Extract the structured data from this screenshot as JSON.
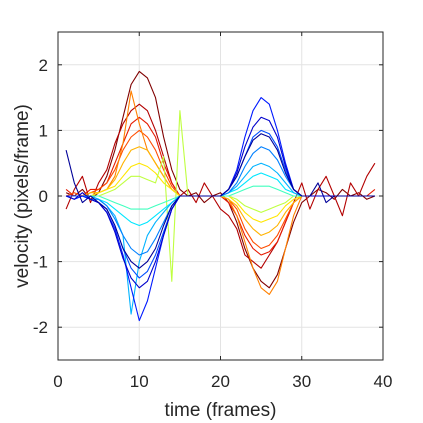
{
  "chart_data": {
    "type": "line",
    "title": "",
    "xlabel": "time (frames)",
    "ylabel": "velocity (pixels/frame)",
    "xlim": [
      0,
      40
    ],
    "ylim": [
      -2.5,
      2.5
    ],
    "xticks": [
      0,
      10,
      20,
      30,
      40
    ],
    "yticks": [
      -2,
      -1,
      0,
      1,
      2
    ],
    "xtick_labels": [
      "0",
      "10",
      "20",
      "30",
      "40"
    ],
    "ytick_labels": [
      "-2",
      "-1",
      "0",
      "1",
      "2"
    ],
    "grid": true,
    "legend": "none",
    "colormap": "jet",
    "x": [
      1,
      2,
      3,
      4,
      5,
      6,
      7,
      8,
      9,
      10,
      11,
      12,
      13,
      14,
      15,
      16,
      17,
      18,
      19,
      20,
      21,
      22,
      23,
      24,
      25,
      26,
      27,
      28,
      29,
      30,
      31,
      32,
      33,
      34,
      35,
      36,
      37,
      38,
      39
    ],
    "series": [
      {
        "color": "#800000",
        "values": [
          0.05,
          0.0,
          0.1,
          -0.05,
          0.05,
          0.3,
          0.7,
          1.2,
          1.7,
          1.9,
          1.8,
          1.5,
          0.9,
          0.4,
          0.1,
          0.0,
          0.05,
          -0.1,
          0.0,
          0.05,
          -0.1,
          -0.4,
          -0.8,
          -1.1,
          -1.3,
          -1.4,
          -1.2,
          -0.8,
          -0.4,
          -0.1,
          0.0,
          0.1,
          0.05,
          -0.05,
          0.1,
          0.0,
          0.05,
          -0.05,
          0.0
        ]
      },
      {
        "color": "#b30000",
        "values": [
          -0.2,
          0.1,
          0.3,
          -0.1,
          0.2,
          0.4,
          0.8,
          1.1,
          1.3,
          1.4,
          1.3,
          1.0,
          0.6,
          0.2,
          0.0,
          0.1,
          -0.1,
          0.2,
          0.0,
          -0.2,
          -0.3,
          -0.5,
          -0.9,
          -1.0,
          -1.1,
          -0.9,
          -0.7,
          -0.4,
          -0.1,
          0.2,
          -0.2,
          0.1,
          0.3,
          0.0,
          -0.3,
          0.2,
          0.0,
          0.3,
          0.5
        ]
      },
      {
        "color": "#e61a00",
        "values": [
          0.1,
          0.0,
          0.0,
          0.1,
          0.1,
          0.2,
          0.5,
          0.8,
          1.1,
          1.2,
          1.1,
          0.9,
          0.5,
          0.2,
          0.0,
          0.0,
          0.0,
          0.0,
          0.0,
          0.0,
          -0.1,
          -0.3,
          -0.6,
          -0.8,
          -0.9,
          -0.85,
          -0.7,
          -0.4,
          -0.1,
          0.0,
          0.0,
          0.0,
          0.0,
          0.0,
          0.0,
          0.0,
          0.0,
          0.0,
          0.1
        ]
      },
      {
        "color": "#ff4d00",
        "values": [
          0.0,
          0.05,
          0.0,
          0.05,
          0.1,
          0.2,
          0.4,
          0.7,
          0.9,
          1.0,
          0.9,
          0.7,
          0.4,
          0.15,
          0.0,
          0.0,
          0.0,
          0.0,
          0.0,
          0.0,
          -0.05,
          -0.2,
          -0.5,
          -0.7,
          -0.8,
          -0.75,
          -0.6,
          -0.35,
          -0.1,
          0.0,
          0.0,
          0.0,
          0.0,
          0.0,
          0.0,
          0.0,
          0.0,
          0.0,
          0.0
        ]
      },
      {
        "color": "#ff8000",
        "values": [
          0.0,
          0.0,
          0.0,
          0.0,
          0.05,
          0.1,
          0.3,
          0.8,
          1.6,
          1.1,
          0.7,
          0.5,
          0.3,
          0.1,
          0.0,
          0.0,
          0.0,
          0.0,
          0.0,
          0.0,
          -0.05,
          -0.3,
          -0.7,
          -1.1,
          -1.4,
          -1.5,
          -1.3,
          -0.8,
          -0.3,
          0.0,
          0.0,
          0.0,
          0.0,
          0.0,
          0.0,
          0.0,
          0.0,
          0.0,
          0.0
        ]
      },
      {
        "color": "#ffb300",
        "values": [
          0.0,
          0.0,
          0.0,
          0.05,
          0.05,
          0.1,
          0.25,
          0.5,
          0.7,
          0.75,
          0.7,
          0.5,
          0.3,
          0.1,
          0.0,
          0.0,
          0.0,
          0.0,
          0.0,
          0.0,
          -0.05,
          -0.15,
          -0.35,
          -0.5,
          -0.6,
          -0.55,
          -0.45,
          -0.25,
          -0.1,
          0.0,
          0.0,
          0.0,
          0.0,
          0.0,
          0.0,
          0.0,
          0.0,
          0.0,
          0.0
        ]
      },
      {
        "color": "#ffe600",
        "values": [
          0.0,
          0.0,
          0.0,
          0.0,
          0.05,
          0.1,
          0.15,
          0.3,
          0.45,
          0.5,
          0.45,
          0.35,
          0.2,
          0.1,
          0.0,
          0.0,
          0.0,
          0.0,
          0.0,
          0.0,
          0.0,
          -0.1,
          -0.25,
          -0.35,
          -0.4,
          -0.35,
          -0.3,
          -0.15,
          -0.05,
          0.0,
          0.0,
          0.0,
          0.0,
          0.0,
          0.0,
          0.0,
          0.0,
          0.0,
          0.0
        ]
      },
      {
        "color": "#bfff40",
        "values": [
          0.0,
          0.0,
          0.0,
          0.0,
          0.0,
          0.05,
          0.1,
          0.2,
          0.3,
          0.3,
          0.25,
          0.2,
          0.6,
          -1.3,
          1.3,
          0.0,
          0.0,
          0.0,
          0.0,
          0.0,
          0.0,
          -0.05,
          -0.15,
          -0.2,
          -0.25,
          -0.2,
          -0.15,
          -0.1,
          0.0,
          0.0,
          0.0,
          0.0,
          0.0,
          0.0,
          0.0,
          0.0,
          0.0,
          0.0,
          0.0
        ]
      },
      {
        "color": "#40ffbf",
        "values": [
          0.0,
          0.0,
          0.0,
          0.0,
          0.0,
          -0.05,
          -0.1,
          -0.15,
          -0.2,
          -0.2,
          -0.2,
          -0.15,
          -0.1,
          -0.05,
          0.0,
          0.0,
          0.0,
          0.0,
          0.0,
          0.0,
          0.0,
          0.05,
          0.1,
          0.15,
          0.15,
          0.15,
          0.1,
          0.05,
          0.0,
          0.0,
          0.0,
          0.0,
          0.0,
          0.0,
          0.0,
          0.0,
          0.0,
          0.0,
          0.0
        ]
      },
      {
        "color": "#00e6ff",
        "values": [
          0.0,
          0.0,
          0.0,
          0.0,
          -0.05,
          -0.1,
          -0.2,
          -0.3,
          -0.4,
          -0.45,
          -0.4,
          -0.3,
          -0.2,
          -0.1,
          0.0,
          0.0,
          0.0,
          0.0,
          0.0,
          0.0,
          0.05,
          0.1,
          0.2,
          0.3,
          0.35,
          0.3,
          0.25,
          0.1,
          0.05,
          0.0,
          0.0,
          0.0,
          0.0,
          0.0,
          0.0,
          0.0,
          0.0,
          0.0,
          0.0
        ]
      },
      {
        "color": "#00b3ff",
        "values": [
          0.0,
          0.0,
          0.0,
          0.0,
          -0.05,
          -0.15,
          -0.3,
          -0.6,
          -1.8,
          -1.0,
          -0.6,
          -0.4,
          -0.25,
          -0.1,
          0.0,
          0.0,
          0.0,
          0.0,
          0.0,
          0.0,
          0.05,
          0.15,
          0.3,
          0.45,
          0.5,
          0.45,
          0.35,
          0.2,
          0.05,
          0.0,
          0.0,
          0.0,
          0.0,
          0.0,
          0.0,
          0.0,
          0.0,
          0.0,
          0.0
        ]
      },
      {
        "color": "#0080ff",
        "values": [
          0.0,
          0.0,
          0.0,
          -0.05,
          -0.05,
          -0.15,
          -0.35,
          -0.6,
          -0.8,
          -0.9,
          -0.85,
          -0.65,
          -0.4,
          -0.15,
          0.0,
          0.0,
          0.0,
          0.0,
          0.0,
          0.0,
          0.05,
          0.2,
          0.45,
          0.65,
          0.75,
          0.7,
          0.55,
          0.3,
          0.1,
          0.0,
          0.0,
          0.0,
          0.0,
          0.0,
          0.0,
          0.0,
          0.0,
          0.0,
          0.0
        ]
      },
      {
        "color": "#004dff",
        "values": [
          0.0,
          0.0,
          0.0,
          -0.05,
          -0.1,
          -0.2,
          -0.45,
          -0.8,
          -1.1,
          -1.25,
          -1.15,
          -0.9,
          -0.55,
          -0.2,
          0.0,
          0.0,
          0.0,
          0.0,
          0.0,
          0.0,
          0.1,
          0.3,
          0.6,
          0.9,
          1.0,
          0.95,
          0.75,
          0.4,
          0.1,
          0.0,
          0.0,
          0.0,
          0.0,
          0.0,
          0.0,
          0.0,
          0.0,
          0.0,
          0.0
        ]
      },
      {
        "color": "#001aff",
        "values": [
          0.0,
          -0.05,
          0.0,
          -0.05,
          -0.1,
          -0.25,
          -0.5,
          -0.9,
          -1.4,
          -1.9,
          -1.6,
          -1.1,
          -0.6,
          -0.2,
          0.0,
          0.0,
          0.0,
          0.0,
          0.0,
          0.0,
          0.1,
          0.4,
          0.9,
          1.3,
          1.5,
          1.4,
          1.0,
          0.5,
          0.1,
          0.0,
          0.0,
          0.0,
          0.0,
          0.0,
          0.0,
          0.0,
          0.0,
          0.0,
          0.0
        ]
      },
      {
        "color": "#0000cc",
        "values": [
          0.0,
          -0.05,
          0.05,
          -0.05,
          -0.1,
          -0.25,
          -0.55,
          -0.95,
          -1.25,
          -1.4,
          -1.3,
          -1.0,
          -0.6,
          -0.2,
          0.0,
          0.0,
          0.0,
          0.0,
          0.0,
          0.0,
          0.1,
          0.35,
          0.75,
          1.05,
          1.2,
          1.15,
          0.9,
          0.45,
          0.1,
          0.0,
          0.0,
          0.0,
          0.0,
          0.0,
          0.0,
          0.0,
          0.0,
          0.0,
          0.0
        ]
      },
      {
        "color": "#000099",
        "values": [
          0.7,
          0.2,
          -0.1,
          0.0,
          -0.1,
          -0.2,
          -0.45,
          -0.8,
          -1.0,
          -1.1,
          -1.0,
          -0.8,
          -0.45,
          -0.15,
          0.0,
          0.0,
          0.0,
          0.0,
          0.0,
          0.0,
          0.1,
          0.3,
          0.6,
          0.85,
          0.95,
          0.9,
          0.7,
          0.35,
          0.1,
          0.0,
          0.0,
          0.2,
          -0.1,
          0.0,
          0.0,
          0.0,
          0.0,
          0.0,
          0.0
        ]
      }
    ]
  }
}
